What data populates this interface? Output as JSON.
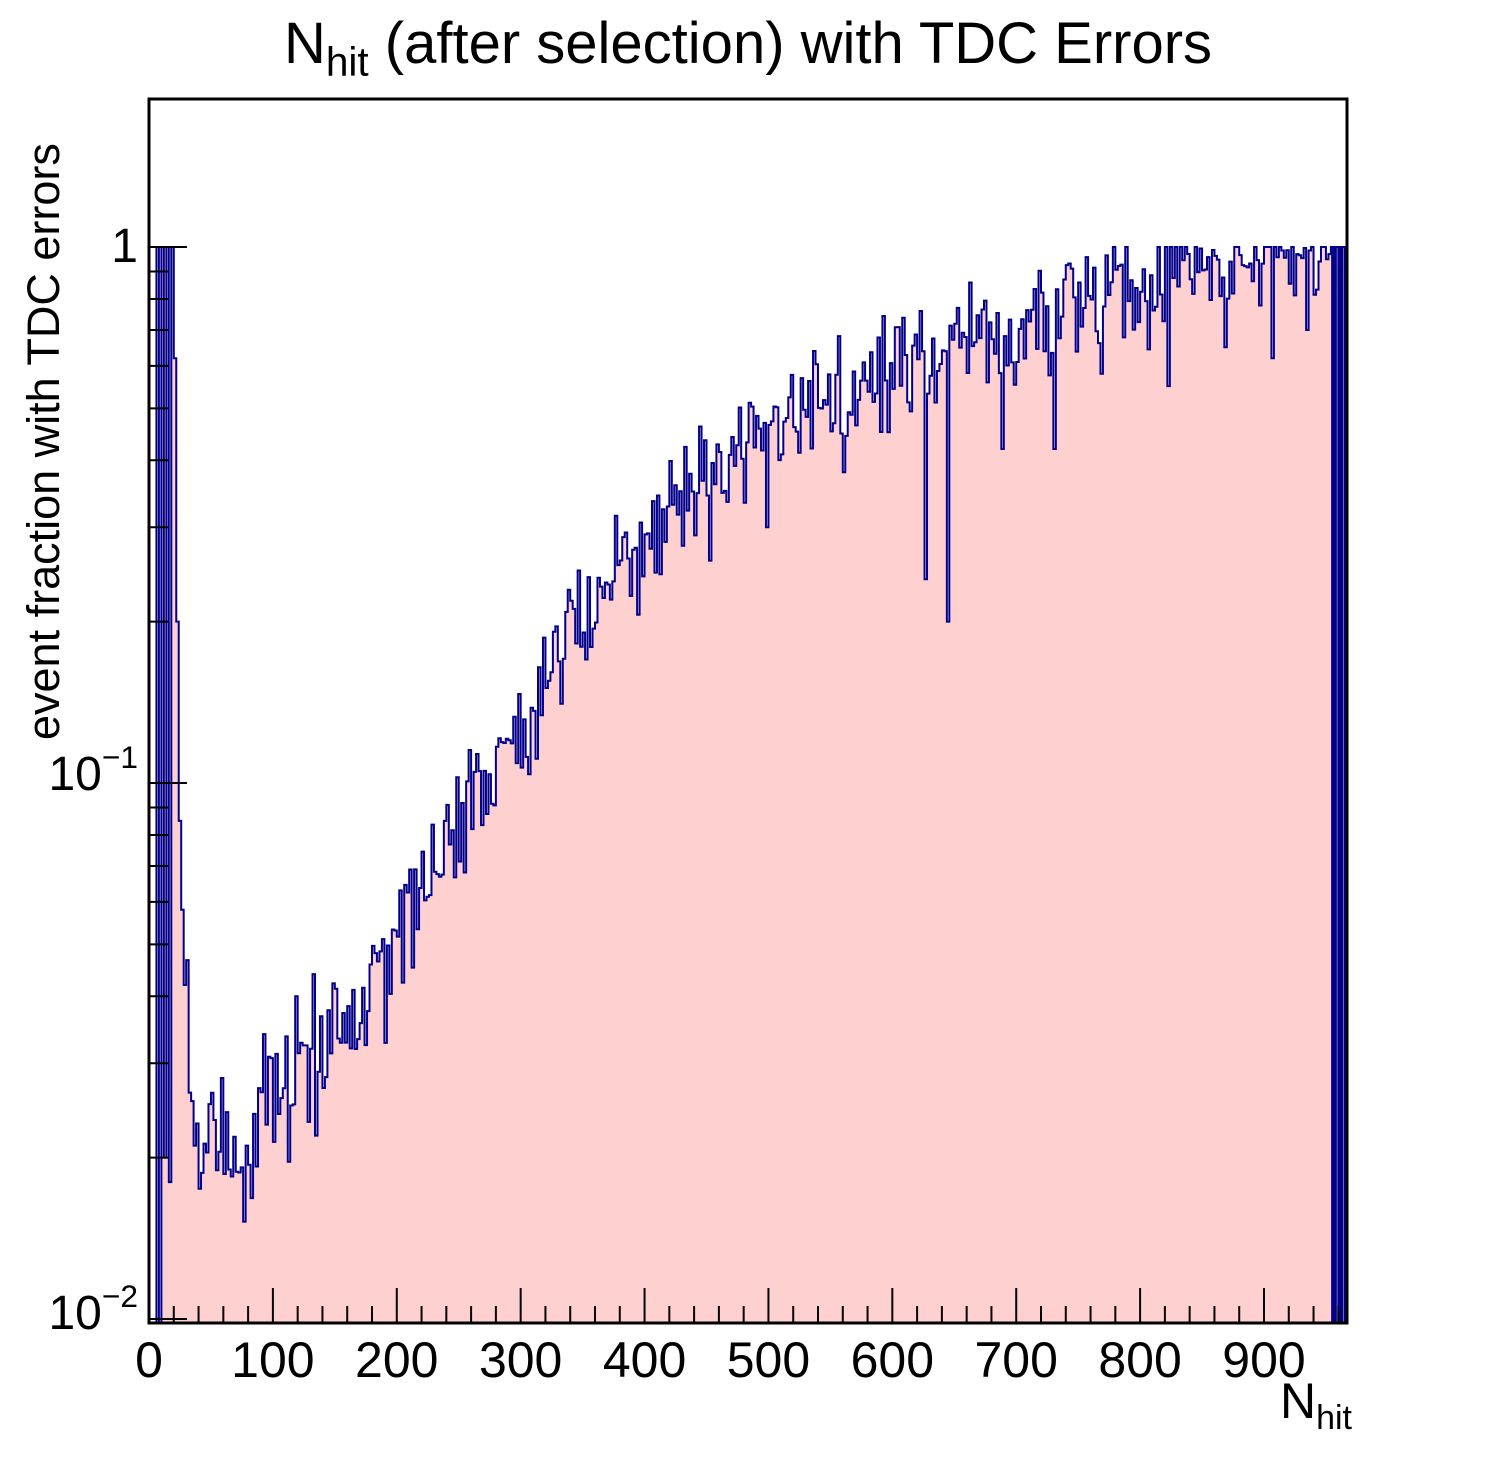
{
  "title": {
    "prefix": "N",
    "subscript": "hit",
    "rest": " (after selection) with TDC Errors"
  },
  "axes": {
    "x": {
      "title_prefix": "N",
      "title_subscript": "hit",
      "min": 0,
      "max": 967,
      "major_ticks": [
        0,
        100,
        200,
        300,
        400,
        500,
        600,
        700,
        800,
        900
      ],
      "major_tick_labels": [
        "0",
        "100",
        "200",
        "300",
        "400",
        "500",
        "600",
        "700",
        "800",
        "900"
      ],
      "minor_tick_step": 20
    },
    "y": {
      "title": "event fraction with TDC errors",
      "scale": "log",
      "min": 0.0098,
      "max": 1.89,
      "major_ticks": [
        1,
        0.1,
        0.01
      ],
      "tick_labels": [
        {
          "base": "1",
          "exp": ""
        },
        {
          "base": "10",
          "exp": "−1"
        },
        {
          "base": "10",
          "exp": "−2"
        }
      ],
      "minor_ticks": [
        0.9,
        0.8,
        0.7,
        0.6,
        0.5,
        0.4,
        0.3,
        0.2,
        0.09,
        0.08,
        0.07,
        0.06,
        0.05,
        0.04,
        0.03,
        0.02
      ]
    }
  },
  "colors": {
    "fill": "#ffd0d0",
    "line": "#00008c",
    "frame": "#000000",
    "text": "#000000",
    "background": "#ffffff"
  },
  "chart_data": {
    "type": "bar",
    "subtype": "step-histogram-filled",
    "title": "N_hit (after selection) with TDC Errors",
    "xlabel": "N_hit",
    "ylabel": "event fraction with TDC errors",
    "x_range": [
      0,
      967
    ],
    "y_range": [
      0.0098,
      1.89
    ],
    "y_scale": "log",
    "bin_width": 2,
    "clip_max": 1.0,
    "envelope_points": [
      [
        30,
        0.034
      ],
      [
        36,
        0.026
      ],
      [
        42,
        0.021
      ],
      [
        50,
        0.02
      ],
      [
        60,
        0.0205
      ],
      [
        80,
        0.0212
      ],
      [
        100,
        0.0235
      ],
      [
        120,
        0.0265
      ],
      [
        140,
        0.0305
      ],
      [
        160,
        0.036
      ],
      [
        180,
        0.043
      ],
      [
        200,
        0.051
      ],
      [
        220,
        0.062
      ],
      [
        240,
        0.075
      ],
      [
        260,
        0.089
      ],
      [
        280,
        0.105
      ],
      [
        300,
        0.125
      ],
      [
        320,
        0.15
      ],
      [
        340,
        0.178
      ],
      [
        360,
        0.21
      ],
      [
        380,
        0.25
      ],
      [
        400,
        0.295
      ],
      [
        420,
        0.33
      ],
      [
        440,
        0.365
      ],
      [
        460,
        0.4
      ],
      [
        480,
        0.43
      ],
      [
        500,
        0.462
      ],
      [
        520,
        0.495
      ],
      [
        540,
        0.525
      ],
      [
        560,
        0.55
      ],
      [
        580,
        0.57
      ],
      [
        600,
        0.59
      ],
      [
        620,
        0.61
      ],
      [
        640,
        0.63
      ],
      [
        660,
        0.655
      ],
      [
        680,
        0.68
      ],
      [
        700,
        0.71
      ],
      [
        720,
        0.745
      ],
      [
        740,
        0.78
      ],
      [
        760,
        0.815
      ],
      [
        780,
        0.85
      ],
      [
        800,
        0.875
      ],
      [
        820,
        0.9
      ],
      [
        840,
        0.92
      ],
      [
        860,
        0.94
      ],
      [
        880,
        0.955
      ],
      [
        900,
        0.965
      ],
      [
        920,
        0.975
      ],
      [
        940,
        0.982
      ],
      [
        952,
        0.985
      ]
    ],
    "left_spike_bins": [
      [
        0,
        0
      ],
      [
        2,
        0
      ],
      [
        4,
        0
      ],
      [
        6,
        1
      ],
      [
        8,
        0.004
      ],
      [
        10,
        1
      ],
      [
        12,
        0.02
      ],
      [
        14,
        1
      ],
      [
        16,
        0.018
      ],
      [
        18,
        1
      ],
      [
        20,
        0.62
      ],
      [
        22,
        0.2
      ],
      [
        24,
        0.085
      ],
      [
        26,
        0.058
      ],
      [
        28,
        0.042
      ]
    ],
    "right_edge_bins": [
      [
        954,
        1
      ],
      [
        955,
        0
      ],
      [
        956,
        1
      ],
      [
        957,
        0
      ],
      [
        958,
        1
      ],
      [
        959,
        1
      ],
      [
        960,
        0
      ],
      [
        961,
        1
      ],
      [
        962,
        0
      ],
      [
        963,
        1
      ],
      [
        964,
        1
      ],
      [
        965,
        0
      ],
      [
        966,
        1
      ]
    ],
    "outliers": [
      [
        92,
        0.034
      ],
      [
        118,
        0.04
      ],
      [
        132,
        0.044
      ],
      [
        452,
        0.26
      ],
      [
        498,
        0.3
      ],
      [
        560,
        0.38
      ],
      [
        626,
        0.24
      ],
      [
        644,
        0.2
      ],
      [
        688,
        0.42
      ],
      [
        730,
        0.42
      ],
      [
        768,
        0.58
      ],
      [
        822,
        0.55
      ],
      [
        868,
        0.65
      ],
      [
        906,
        0.62
      ],
      [
        934,
        0.7
      ]
    ],
    "noise": {
      "seed": 73,
      "sigma_log10": 0.055,
      "sigma_log10_low": 0.07,
      "low_threshold": 0.05
    }
  }
}
